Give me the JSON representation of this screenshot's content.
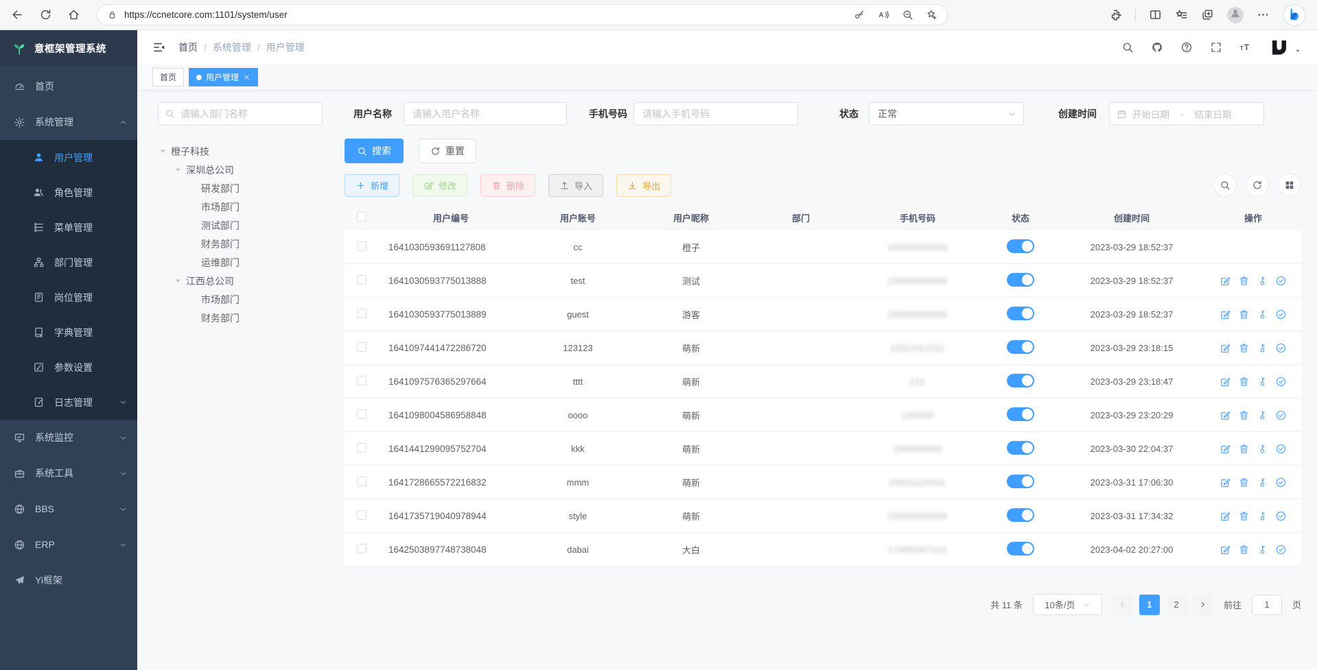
{
  "colors": {
    "accent": "#409eff",
    "sidebar_bg": "#304156",
    "submenu_bg": "#1f2d3d",
    "success": "#67c23a",
    "danger": "#f56c6c",
    "warning": "#e6a23c",
    "info": "#909399"
  },
  "browser": {
    "url": "https://ccnetcore.com:1101/system/user",
    "nav_icons": [
      "back-icon",
      "refresh-icon",
      "home-icon"
    ],
    "address_icons": [
      "lock-icon",
      "key-icon",
      "read-aloud-icon",
      "zoom-out-icon",
      "favorite-add-icon"
    ],
    "toolbar_icons": [
      "extensions-icon",
      "split-screen-icon",
      "favorites-icon",
      "collections-icon",
      "profile-icon",
      "more-icon",
      "copilot-icon"
    ]
  },
  "sidebar": {
    "title": "意框架管理系统",
    "menu": [
      {
        "name": "home",
        "label": "首页",
        "icon": "dashboard-icon"
      },
      {
        "name": "system-management",
        "label": "系统管理",
        "icon": "gear-icon",
        "expanded": true,
        "children": [
          {
            "name": "user-management",
            "label": "用户管理",
            "icon": "user-icon",
            "active": true
          },
          {
            "name": "role-management",
            "label": "角色管理",
            "icon": "users-icon"
          },
          {
            "name": "menu-management",
            "label": "菜单管理",
            "icon": "menu-list-icon"
          },
          {
            "name": "dept-management",
            "label": "部门管理",
            "icon": "org-tree-icon"
          },
          {
            "name": "post-management",
            "label": "岗位管理",
            "icon": "badge-icon"
          },
          {
            "name": "dict-management",
            "label": "字典管理",
            "icon": "dict-icon"
          },
          {
            "name": "param-settings",
            "label": "参数设置",
            "icon": "param-edit-icon"
          },
          {
            "name": "log-management",
            "label": "日志管理",
            "icon": "log-icon",
            "collapsible": true
          }
        ]
      },
      {
        "name": "system-monitor",
        "label": "系统监控",
        "icon": "monitor-icon",
        "collapsible": true
      },
      {
        "name": "system-tools",
        "label": "系统工具",
        "icon": "tools-icon",
        "collapsible": true
      },
      {
        "name": "bbs",
        "label": "BBS",
        "icon": "globe-icon",
        "collapsible": true
      },
      {
        "name": "erp",
        "label": "ERP",
        "icon": "globe-icon",
        "collapsible": true
      },
      {
        "name": "yi-framework",
        "label": "Yi框架",
        "icon": "paper-plane-icon"
      }
    ]
  },
  "navbar": {
    "breadcrumb": [
      "首页",
      "系统管理",
      "用户管理"
    ],
    "icons": [
      "search-icon",
      "github-icon",
      "help-icon",
      "fullscreen-icon",
      "font-size-icon"
    ]
  },
  "tags": [
    {
      "name": "tag-home",
      "label": "首页",
      "active": false,
      "closable": false
    },
    {
      "name": "tag-user-management",
      "label": "用户管理",
      "active": true,
      "closable": true
    }
  ],
  "filters": {
    "dept_search_placeholder": "请输入部门名称",
    "username": {
      "label": "用户名称",
      "placeholder": "请输入用户名称"
    },
    "phone": {
      "label": "手机号码",
      "placeholder": "请输入手机号码"
    },
    "status": {
      "label": "状态",
      "value": "正常"
    },
    "created": {
      "label": "创建时间",
      "start_placeholder": "开始日期",
      "separator": "-",
      "end_placeholder": "结束日期"
    }
  },
  "dept_tree": [
    {
      "label": "橙子科技",
      "depth": 0,
      "caret": true
    },
    {
      "label": "深圳总公司",
      "depth": 1,
      "caret": true
    },
    {
      "label": "研发部门",
      "depth": 2,
      "caret": false
    },
    {
      "label": "市场部门",
      "depth": 2,
      "caret": false
    },
    {
      "label": "测试部门",
      "depth": 2,
      "caret": false
    },
    {
      "label": "财务部门",
      "depth": 2,
      "caret": false
    },
    {
      "label": "运维部门",
      "depth": 2,
      "caret": false
    },
    {
      "label": "江西总公司",
      "depth": 1,
      "caret": true
    },
    {
      "label": "市场部门",
      "depth": 2,
      "caret": false
    },
    {
      "label": "财务部门",
      "depth": 2,
      "caret": false
    }
  ],
  "buttons": {
    "search": "搜索",
    "reset": "重置"
  },
  "toolbar": [
    {
      "name": "add-button",
      "label": "新增",
      "icon": "plus-icon",
      "style": "primary-plain"
    },
    {
      "name": "edit-button",
      "label": "修改",
      "icon": "edit-icon",
      "style": "success-plain"
    },
    {
      "name": "delete-button",
      "label": "删除",
      "icon": "trash-icon",
      "style": "danger-plain"
    },
    {
      "name": "import-button",
      "label": "导入",
      "icon": "upload-icon",
      "style": "info-plain"
    },
    {
      "name": "export-button",
      "label": "导出",
      "icon": "download-icon",
      "style": "warning-plain"
    }
  ],
  "table": {
    "columns": [
      "用户编号",
      "用户账号",
      "用户昵称",
      "部门",
      "手机号码",
      "状态",
      "创建时间",
      "操作"
    ],
    "row_actions": [
      {
        "name": "edit-icon",
        "icon": "edit"
      },
      {
        "name": "delete-icon",
        "icon": "trash"
      },
      {
        "name": "reset-password-icon",
        "icon": "key-vertical"
      },
      {
        "name": "assign-role-icon",
        "icon": "check-circle"
      }
    ],
    "rows": [
      {
        "id": "1641030593691127808",
        "account": "cc",
        "nickname": "橙子",
        "dept": "",
        "phone_redacted": "15000000000",
        "status_on": true,
        "created": "2023-03-29 18:52:37",
        "actions": false
      },
      {
        "id": "1641030593775013888",
        "account": "test",
        "nickname": "测试",
        "dept": "",
        "phone_redacted": "15000000000",
        "status_on": true,
        "created": "2023-03-29 18:52:37",
        "actions": true
      },
      {
        "id": "1641030593775013889",
        "account": "guest",
        "nickname": "游客",
        "dept": "",
        "phone_redacted": "15000000000",
        "status_on": true,
        "created": "2023-03-29 18:52:37",
        "actions": true
      },
      {
        "id": "1641097441472286720",
        "account": "123123",
        "nickname": "萌新",
        "dept": "",
        "phone_redacted": "1231241231",
        "status_on": true,
        "created": "2023-03-29 23:18:15",
        "actions": true
      },
      {
        "id": "1641097576365297664",
        "account": "tttt",
        "nickname": "萌新",
        "dept": "",
        "phone_redacted": "121",
        "status_on": true,
        "created": "2023-03-29 23:18:47",
        "actions": true
      },
      {
        "id": "1641098004586958848",
        "account": "oooo",
        "nickname": "萌新",
        "dept": "",
        "phone_redacted": "120400",
        "status_on": true,
        "created": "2023-03-29 23:20:29",
        "actions": true
      },
      {
        "id": "1641441299095752704",
        "account": "kkk",
        "nickname": "萌新",
        "dept": "",
        "phone_redacted": "150000000",
        "status_on": true,
        "created": "2023-03-30 22:04:37",
        "actions": true
      },
      {
        "id": "1641728665572216832",
        "account": "mmm",
        "nickname": "萌新",
        "dept": "",
        "phone_redacted": "15011110011",
        "status_on": true,
        "created": "2023-03-31 17:06:30",
        "actions": true
      },
      {
        "id": "1641735719040978944",
        "account": "style",
        "nickname": "萌新",
        "dept": "",
        "phone_redacted": "15000000000",
        "status_on": true,
        "created": "2023-03-31 17:34:32",
        "actions": true
      },
      {
        "id": "1642503897748738048",
        "account": "dabai",
        "nickname": "大白",
        "dept": "",
        "phone_redacted": "17005007110",
        "status_on": true,
        "created": "2023-04-02 20:27:00",
        "actions": true
      }
    ]
  },
  "pagination": {
    "total_text": "共 11 条",
    "page_size": "10条/页",
    "pages": [
      "1",
      "2"
    ],
    "active_page": "1",
    "goto_label": "前往",
    "goto_value": "1",
    "page_unit": "页"
  }
}
